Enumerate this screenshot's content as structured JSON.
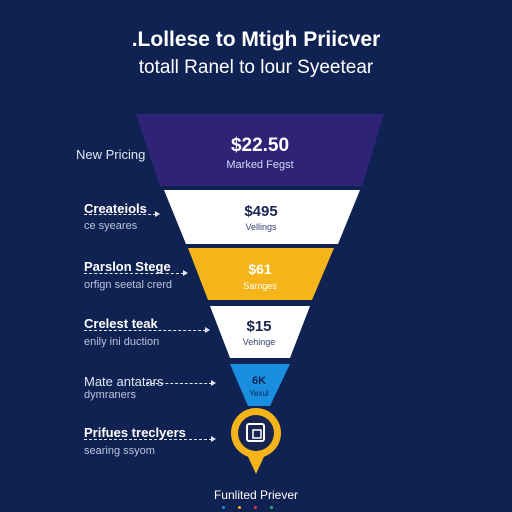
{
  "header": {
    "title": ".Lollese to Mtigh Priicver",
    "subtitle": "totall Ranel to lour Syeetear"
  },
  "stages": [
    {
      "label": "New Pricing",
      "desc": "",
      "value": "$22.50",
      "sub": "Marked Fegst",
      "color": "#2f2378"
    },
    {
      "label": "Createiols",
      "desc": "ce syeares",
      "value": "$495",
      "sub": "Vellings",
      "color": "#ffffff"
    },
    {
      "label": "Parslon Stege",
      "desc": "orfign seetal crerd",
      "value": "$61",
      "sub": "Sarnges",
      "color": "#f4b41a"
    },
    {
      "label": "Crelest teak",
      "desc": "enily ini duction",
      "value": "$15",
      "sub": "Vehinge",
      "color": "#ffffff"
    },
    {
      "label": "Mate antatars",
      "desc": "dymraners",
      "value": "6K",
      "sub": "Yexul",
      "color": "#1a8fe0"
    },
    {
      "label": "Prifues treclyers",
      "desc": "searing ssyom",
      "value": "",
      "sub": "",
      "color": "#f4b41a"
    }
  ],
  "footer": {
    "text": "Funlited Priever"
  },
  "accent_colors": [
    "#1a8fe0",
    "#f4b41a",
    "#e23b3b",
    "#2cb36b"
  ]
}
